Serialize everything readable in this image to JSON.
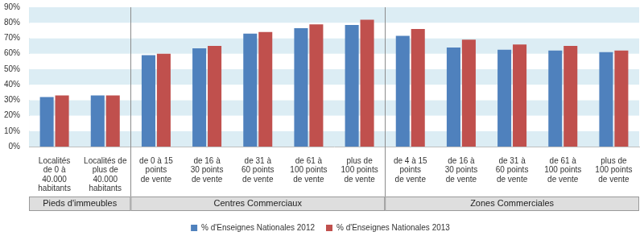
{
  "chart_data": {
    "type": "bar",
    "categories": [
      [
        "Localités",
        "de 0 à",
        "40.000",
        "habitants"
      ],
      [
        "Localités de",
        "plus de",
        "40.000",
        "habitants"
      ],
      [
        "de 0 à 15",
        "points",
        "de vente"
      ],
      [
        "de 16 à",
        "30 points",
        "de vente"
      ],
      [
        "de 31 à",
        "60 points",
        "de vente"
      ],
      [
        "de 61 à",
        "100 points",
        "de vente"
      ],
      [
        "plus de",
        "100 points",
        "de vente"
      ],
      [
        "de 4 à 15",
        "points",
        "de vente"
      ],
      [
        "de 16 à",
        "30 points",
        "de vente"
      ],
      [
        "de 31 à",
        "60 points",
        "de vente"
      ],
      [
        "de 61 à",
        "100 points",
        "de vente"
      ],
      [
        "plus de",
        "100 points",
        "de vente"
      ]
    ],
    "groups": [
      {
        "label": "Pieds d'immeubles",
        "size": 2
      },
      {
        "label": "Centres Commerciaux",
        "size": 5
      },
      {
        "label": "Zones Commerciales",
        "size": 5
      }
    ],
    "series": [
      {
        "name": "% d'Enseignes Nationales 2012",
        "color": "#4f81bd",
        "values": [
          32,
          33,
          59,
          63.5,
          73,
          76.5,
          78.5,
          71.5,
          64,
          62.5,
          62,
          61
        ]
      },
      {
        "name": "% d'Enseignes Nationales 2013",
        "color": "#c0504d",
        "values": [
          33,
          33,
          60,
          65,
          74,
          79,
          82,
          76,
          69,
          66,
          65,
          62
        ]
      }
    ],
    "ylim": [
      0,
      90
    ],
    "yticks": [
      {
        "value": 0,
        "label": "0%"
      },
      {
        "value": 10,
        "label": "10%"
      },
      {
        "value": 20,
        "label": "20%"
      },
      {
        "value": 30,
        "label": "30%"
      },
      {
        "value": 40,
        "label": "40%"
      },
      {
        "value": 50,
        "label": "50%"
      },
      {
        "value": 60,
        "label": "60%"
      },
      {
        "value": 70,
        "label": "70%"
      },
      {
        "value": 80,
        "label": "80%"
      },
      {
        "value": 90,
        "label": "90%"
      }
    ],
    "grid": true,
    "legend": "bottom"
  }
}
